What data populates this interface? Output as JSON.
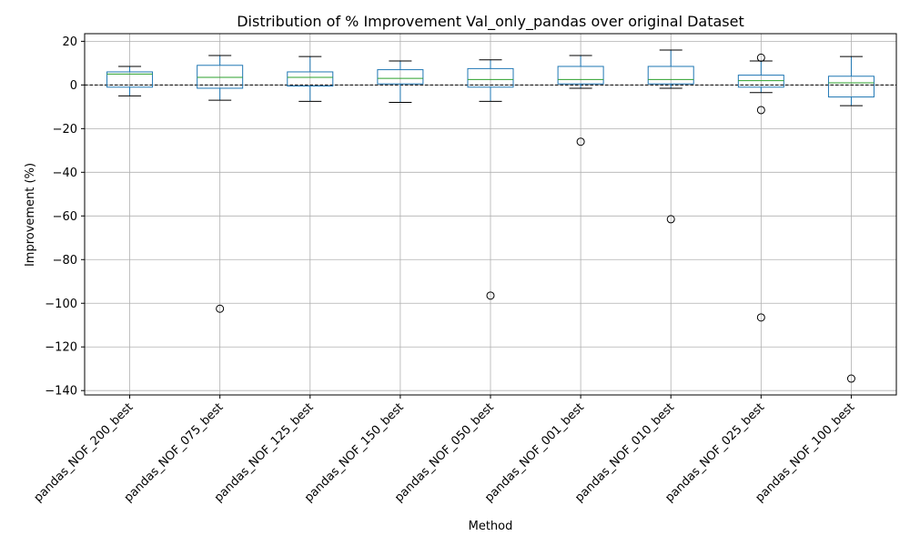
{
  "chart_data": {
    "type": "box",
    "title": "Distribution of % Improvement Val_only_pandas over original Dataset",
    "xlabel": "Method",
    "ylabel": "Improvement (%)",
    "ylim": [
      -142,
      23.5
    ],
    "yticks": [
      20,
      0,
      -20,
      -40,
      -60,
      -80,
      -100,
      -120,
      -140
    ],
    "ytick_labels": [
      "20",
      "0",
      "−20",
      "−40",
      "−60",
      "−80",
      "−100",
      "−120",
      "−140"
    ],
    "grid": true,
    "reference_line": {
      "y": 0,
      "style": "dashed"
    },
    "colors": {
      "box": "#1f77b4",
      "median": "#2ca02c",
      "whisker": "#1f77b4",
      "cap": "#000000",
      "flier": "#000000",
      "grid": "#b0b0b0",
      "refline": "#000000"
    },
    "categories": [
      "pandas_NOF_200_best",
      "pandas_NOF_075_best",
      "pandas_NOF_125_best",
      "pandas_NOF_150_best",
      "pandas_NOF_050_best",
      "pandas_NOF_001_best",
      "pandas_NOF_010_best",
      "pandas_NOF_025_best",
      "pandas_NOF_100_best"
    ],
    "boxes": [
      {
        "whislo": -5,
        "q1": -1,
        "med": 5,
        "q3": 6,
        "whishi": 8.5,
        "fliers": []
      },
      {
        "whislo": -7,
        "q1": -1.5,
        "med": 3.5,
        "q3": 9,
        "whishi": 13.5,
        "fliers": [
          -102.5
        ]
      },
      {
        "whislo": -7.5,
        "q1": -0.5,
        "med": 3.5,
        "q3": 6,
        "whishi": 13,
        "fliers": []
      },
      {
        "whislo": -8,
        "q1": 0.5,
        "med": 3,
        "q3": 7,
        "whishi": 11,
        "fliers": []
      },
      {
        "whislo": -7.5,
        "q1": -1,
        "med": 2.5,
        "q3": 7.5,
        "whishi": 11.5,
        "fliers": [
          -96.5
        ]
      },
      {
        "whislo": -1.5,
        "q1": 0.5,
        "med": 2.5,
        "q3": 8.5,
        "whishi": 13.5,
        "fliers": [
          -26
        ]
      },
      {
        "whislo": -1.5,
        "q1": 0.5,
        "med": 2.5,
        "q3": 8.5,
        "whishi": 16,
        "fliers": [
          -61.5
        ]
      },
      {
        "whislo": -3.5,
        "q1": -1,
        "med": 2,
        "q3": 4.5,
        "whishi": 11,
        "fliers": [
          12.5,
          -11.5,
          -106.5
        ]
      },
      {
        "whislo": -9.5,
        "q1": -5.5,
        "med": 1,
        "q3": 4,
        "whishi": 13,
        "fliers": [
          -134.5
        ]
      }
    ]
  }
}
